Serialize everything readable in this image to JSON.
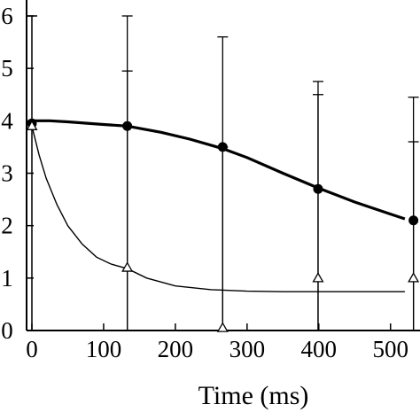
{
  "chart_data": {
    "type": "line",
    "title": "",
    "xlabel": "Time (ms)",
    "ylabel": "",
    "xlim": [
      0,
      520
    ],
    "ylim": [
      0,
      6
    ],
    "x_ticks": [
      {
        "value": 0,
        "label": "0"
      },
      {
        "value": 100,
        "label": "100"
      },
      {
        "value": 200,
        "label": "200"
      },
      {
        "value": 300,
        "label": "300"
      },
      {
        "value": 400,
        "label": "400"
      },
      {
        "value": 500,
        "label": "500"
      }
    ],
    "y_ticks": [
      {
        "value": 0,
        "label": "0"
      },
      {
        "value": 1,
        "label": "1"
      },
      {
        "value": 2,
        "label": "2"
      },
      {
        "value": 3,
        "label": "3"
      },
      {
        "value": 4,
        "label": "4"
      },
      {
        "value": 5,
        "label": "5"
      },
      {
        "value": 6,
        "label": "6"
      }
    ],
    "grid": false,
    "series": [
      {
        "marker": "filled-circle",
        "line": "thick",
        "color": "#000000",
        "points": [
          {
            "x": 0,
            "y": 3.95,
            "err_low": 0.0,
            "err_high": 6.0
          },
          {
            "x": 133,
            "y": 3.9,
            "err_low": 0.0,
            "err_high": 6.0
          },
          {
            "x": 266,
            "y": 3.5,
            "err_low": 0.0,
            "err_high": 5.6
          },
          {
            "x": 399,
            "y": 2.7,
            "err_low": 0.0,
            "err_high": 4.5
          },
          {
            "x": 532,
            "y": 2.1,
            "err_low": 0.0,
            "err_high": 3.6
          }
        ],
        "fit": [
          [
            0,
            4.0
          ],
          [
            25,
            4.0
          ],
          [
            50,
            3.98
          ],
          [
            100,
            3.93
          ],
          [
            133,
            3.9
          ],
          [
            180,
            3.78
          ],
          [
            220,
            3.65
          ],
          [
            266,
            3.47
          ],
          [
            300,
            3.3
          ],
          [
            350,
            3.0
          ],
          [
            399,
            2.72
          ],
          [
            450,
            2.45
          ],
          [
            500,
            2.22
          ],
          [
            520,
            2.13
          ]
        ]
      },
      {
        "marker": "open-triangle",
        "line": "thin",
        "color": "#000000",
        "points": [
          {
            "x": 0,
            "y": 3.9,
            "err_low": 0.0,
            "err_high": 6.0
          },
          {
            "x": 133,
            "y": 1.2,
            "err_low": 0.0,
            "err_high": 4.95
          },
          {
            "x": 266,
            "y": 0.05,
            "err_low": 0.0,
            "err_high": 3.5
          },
          {
            "x": 399,
            "y": 1.0,
            "err_low": 0.0,
            "err_high": 4.75
          },
          {
            "x": 532,
            "y": 1.0,
            "err_low": 0.0,
            "err_high": 4.45
          }
        ],
        "fit": [
          [
            0,
            3.9
          ],
          [
            10,
            3.35
          ],
          [
            20,
            2.9
          ],
          [
            35,
            2.4
          ],
          [
            50,
            2.0
          ],
          [
            70,
            1.65
          ],
          [
            90,
            1.4
          ],
          [
            110,
            1.27
          ],
          [
            133,
            1.18
          ],
          [
            160,
            1.0
          ],
          [
            200,
            0.85
          ],
          [
            250,
            0.78
          ],
          [
            300,
            0.75
          ],
          [
            350,
            0.74
          ],
          [
            400,
            0.74
          ],
          [
            450,
            0.74
          ],
          [
            520,
            0.74
          ]
        ]
      }
    ]
  }
}
